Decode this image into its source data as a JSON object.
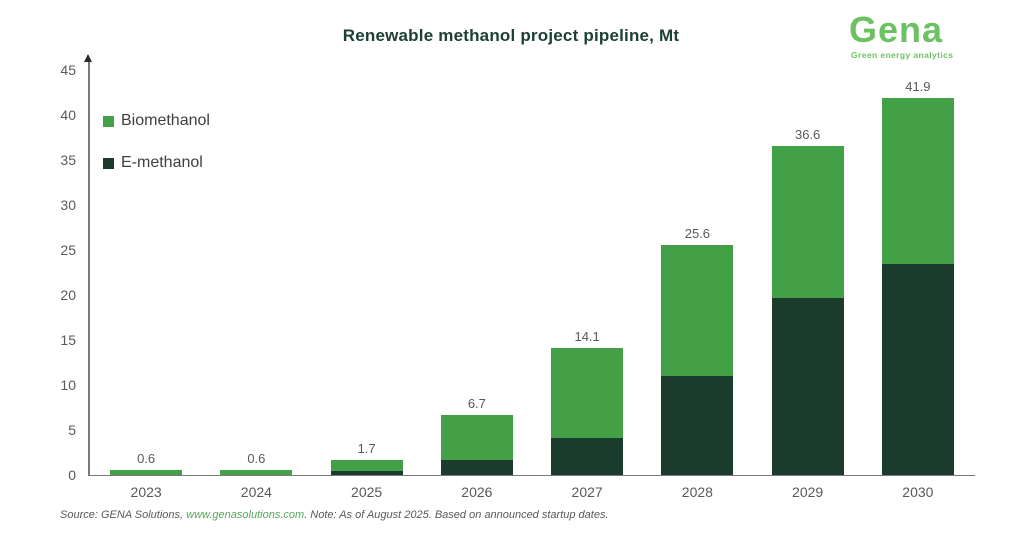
{
  "title": "Renewable methanol project pipeline, Mt",
  "logo": {
    "name": "Gena",
    "tagline": "Green energy analytics"
  },
  "legend": {
    "items": [
      {
        "label": "Biomethanol",
        "color": "#43a046"
      },
      {
        "label": "E-methanol",
        "color": "#1b3b2c"
      }
    ]
  },
  "source": {
    "prefix": "Source: GENA Solutions, ",
    "link": "www.genasolutions.com",
    "suffix": ". Note: As of August 2025. Based on announced startup dates."
  },
  "colors": {
    "biomethanol": "#43a046",
    "emethanol": "#1b3b2c",
    "title_green": "#1e4033",
    "logo_green": "#6cc163",
    "axis_gray": "#7a7a7a",
    "label_gray": "#595959",
    "link_green": "#53a85a"
  },
  "chart_data": {
    "type": "bar",
    "stacked": true,
    "title": "Renewable methanol project pipeline, Mt",
    "categories": [
      "2023",
      "2024",
      "2025",
      "2026",
      "2027",
      "2028",
      "2029",
      "2030"
    ],
    "series": [
      {
        "name": "E-methanol",
        "color": "#1b3b2c",
        "values": [
          0,
          0,
          0.4,
          1.7,
          4.1,
          11.0,
          19.7,
          23.4
        ]
      },
      {
        "name": "Biomethanol",
        "color": "#43a046",
        "values": [
          0.6,
          0.6,
          1.3,
          5.0,
          10.0,
          14.6,
          16.9,
          18.5
        ]
      }
    ],
    "totals": [
      0.6,
      0.6,
      1.7,
      6.7,
      14.1,
      25.6,
      36.6,
      41.9
    ],
    "total_labels": [
      "0.6",
      "0.6",
      "1.7",
      "6.7",
      "14.1",
      "25.6",
      "36.6",
      "41.9"
    ],
    "xlabel": "",
    "ylabel": "",
    "ylim": [
      0,
      45
    ],
    "ytick_step": 5,
    "grid": false,
    "legend_position": "top-left",
    "data_labels": "total-above-bar"
  }
}
